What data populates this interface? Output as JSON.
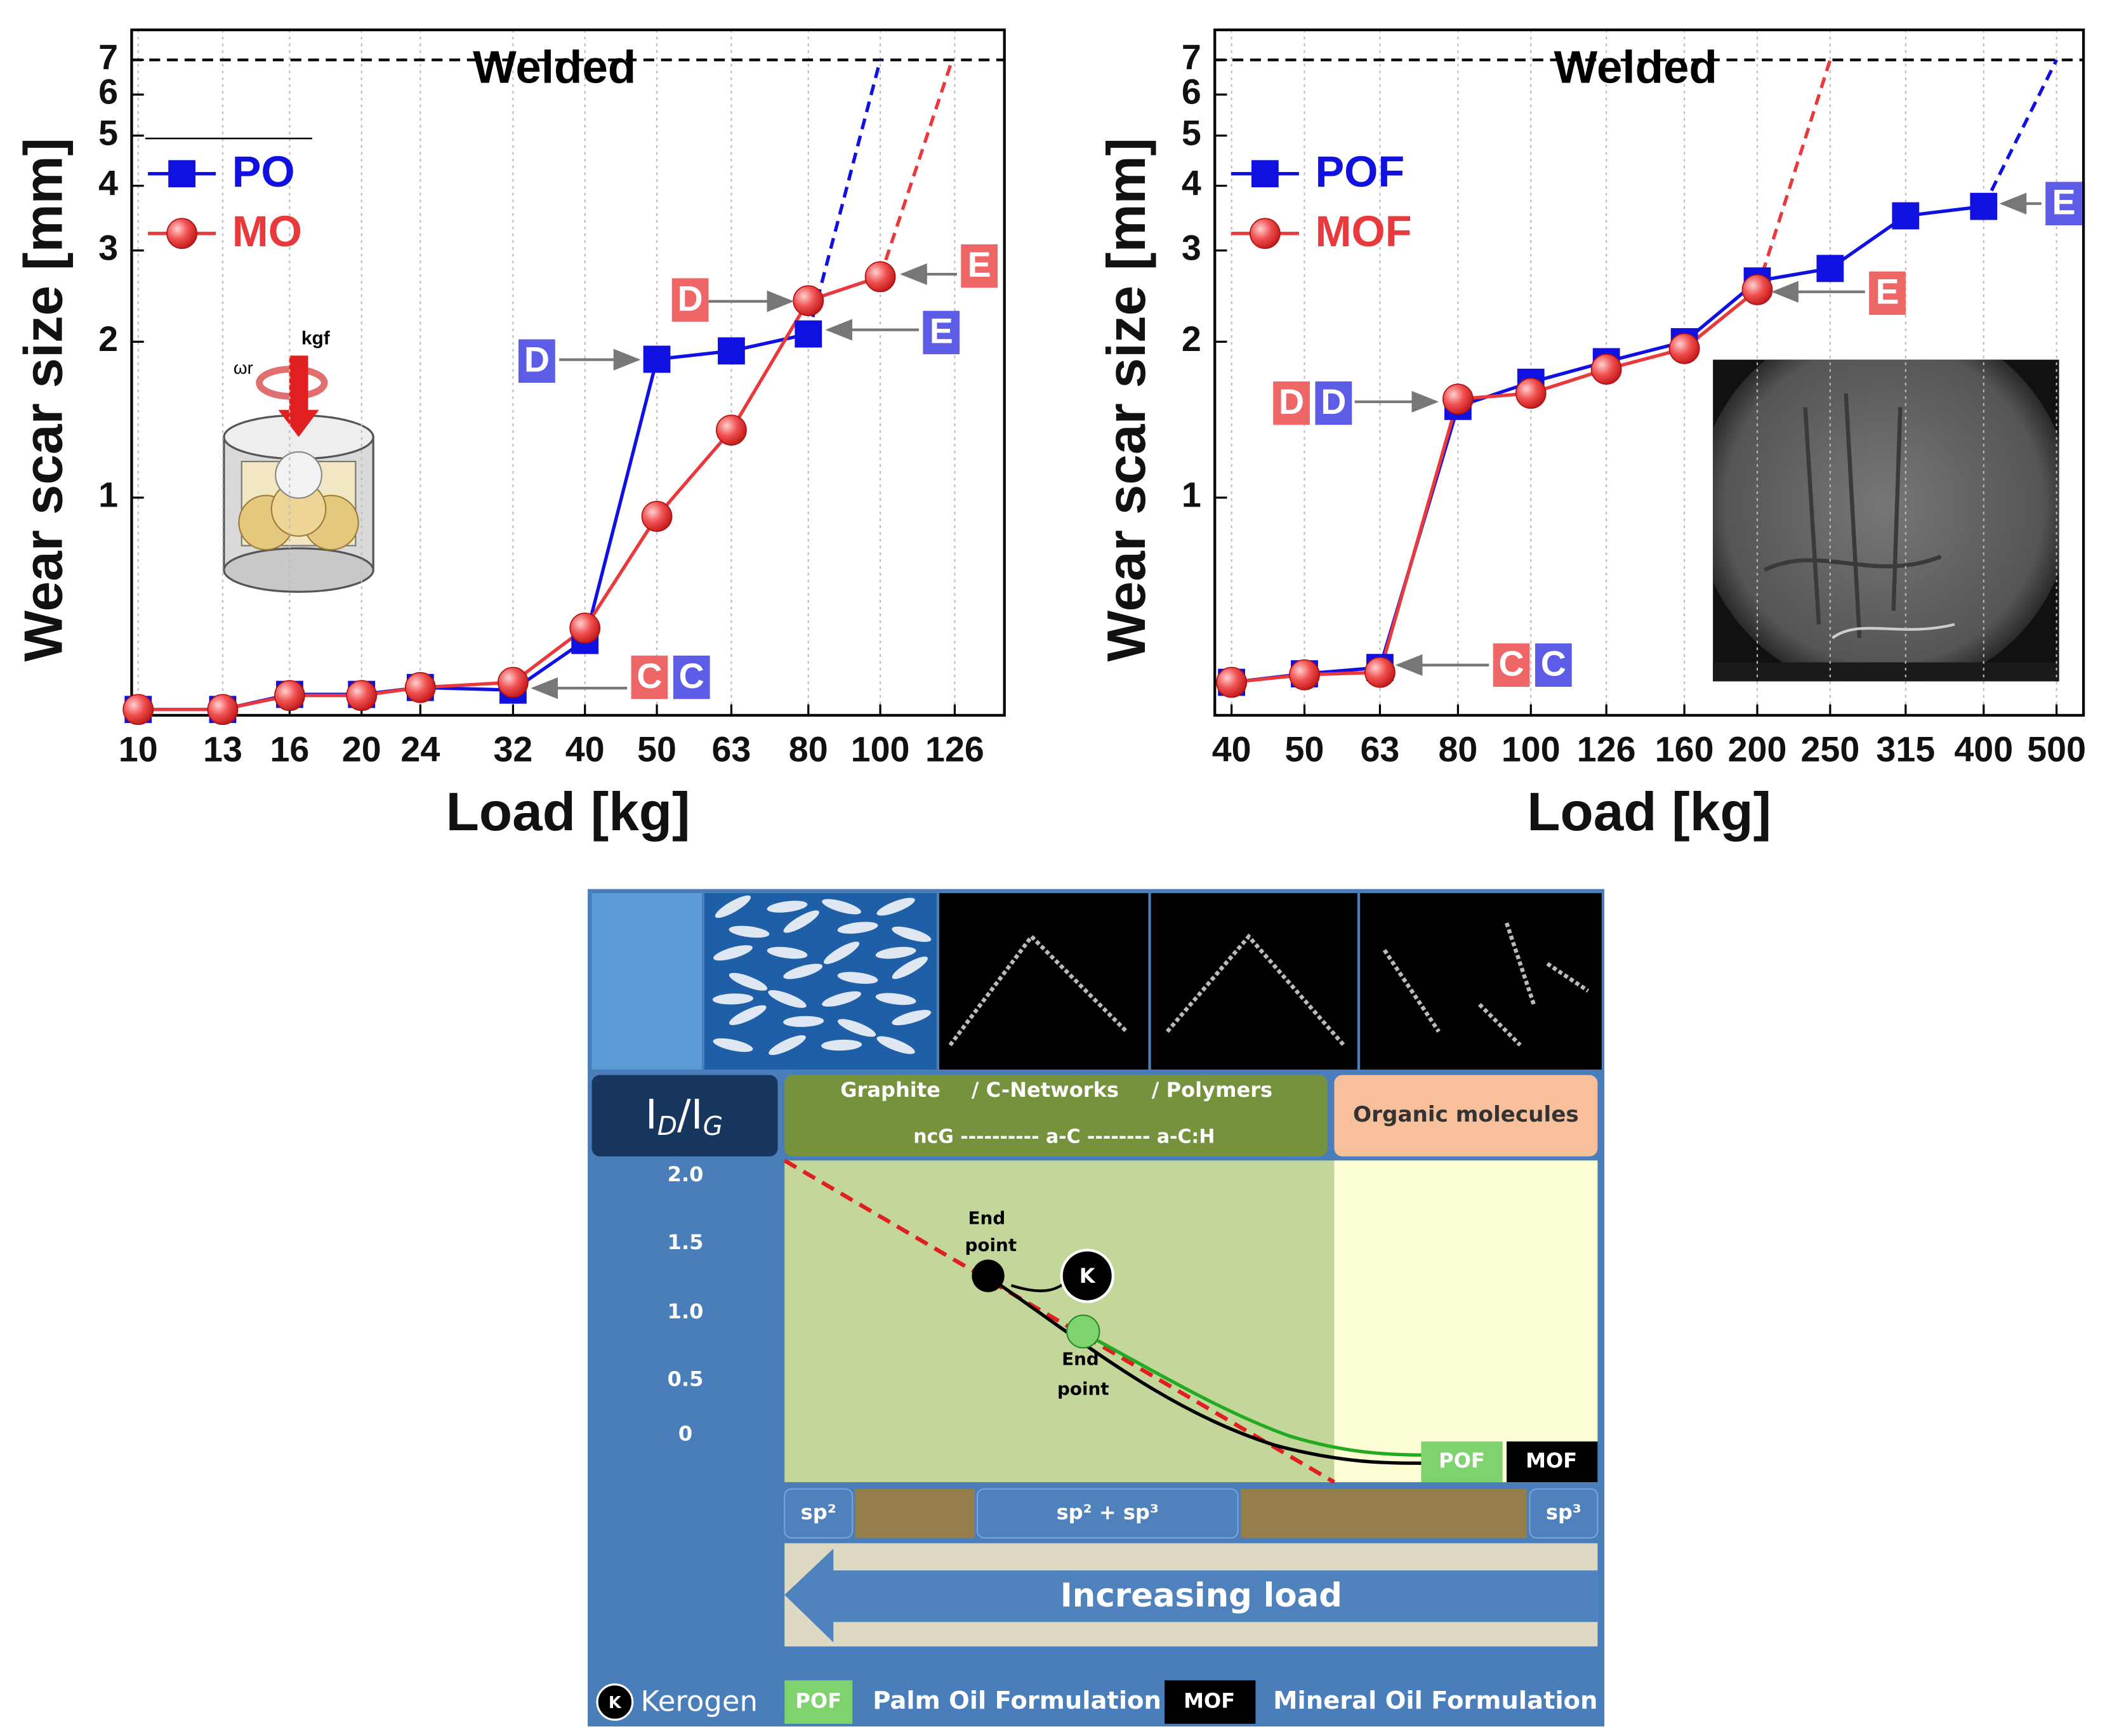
{
  "chart_data": [
    {
      "type": "line",
      "welded_label": "Welded",
      "x_label": "Load [kg]",
      "y_label": "Wear scar size [mm]",
      "xscale": "log",
      "yscale": "log",
      "xlim": [
        9.8,
        147
      ],
      "ylim": [
        0.38,
        8
      ],
      "xticks": [
        10,
        13,
        16,
        20,
        24,
        32,
        40,
        50,
        63,
        80,
        100,
        126
      ],
      "yticks": [
        1,
        2,
        3,
        4,
        5,
        6,
        7
      ],
      "grid": true,
      "welded_level": 7,
      "legend": "upper left",
      "series": [
        {
          "name": "PO",
          "color": "#1010e0",
          "marker": "square",
          "x": [
            10,
            13,
            16,
            20,
            24,
            32,
            40,
            50,
            63,
            80
          ],
          "values": [
            0.39,
            0.39,
            0.417,
            0.417,
            0.43,
            0.425,
            0.53,
            1.85,
            1.92,
            2.07
          ],
          "extrapolated": {
            "x": 100,
            "y": 7
          }
        },
        {
          "name": "MO",
          "color": "#e8393c",
          "marker": "circle",
          "x": [
            10,
            13,
            16,
            20,
            24,
            32,
            40,
            50,
            63,
            80,
            100
          ],
          "values": [
            0.39,
            0.39,
            0.415,
            0.415,
            0.43,
            0.44,
            0.56,
            0.92,
            1.35,
            2.4,
            2.67
          ],
          "extrapolated": {
            "x": 125,
            "y": 7
          }
        }
      ],
      "annotations": [
        {
          "text": "D",
          "color": "#ef6666"
        },
        {
          "text": "E",
          "color": "#ef6666"
        },
        {
          "text": "D",
          "color": "#5c5ce6"
        },
        {
          "text": "E",
          "color": "#5c5ce6"
        },
        {
          "text": "C",
          "color": "#ef6666"
        },
        {
          "text": "C",
          "color": "#5c5ce6"
        }
      ],
      "inset_labels": [
        "kgf",
        "ωr"
      ]
    },
    {
      "type": "line",
      "welded_label": "Welded",
      "x_label": "Load [kg]",
      "y_label": "Wear scar size [mm]",
      "xscale": "log",
      "yscale": "log",
      "xlim": [
        38,
        543
      ],
      "ylim": [
        0.38,
        8
      ],
      "xticks": [
        40,
        50,
        63,
        80,
        100,
        126,
        160,
        200,
        250,
        315,
        400,
        500
      ],
      "yticks": [
        1,
        2,
        3,
        4,
        5,
        6,
        7
      ],
      "grid": true,
      "welded_level": 7,
      "legend": "upper left",
      "series": [
        {
          "name": "POF",
          "color": "#1010e0",
          "marker": "square",
          "x": [
            40,
            50,
            63,
            80,
            100,
            126,
            160,
            200,
            250,
            315,
            400
          ],
          "values": [
            0.44,
            0.457,
            0.47,
            1.5,
            1.67,
            1.83,
            2.0,
            2.62,
            2.77,
            3.5,
            3.65
          ],
          "extrapolated": {
            "x": 500,
            "y": 7
          }
        },
        {
          "name": "MOF",
          "color": "#e8393c",
          "marker": "circle",
          "x": [
            40,
            50,
            63,
            80,
            100,
            126,
            160,
            200
          ],
          "values": [
            0.44,
            0.455,
            0.46,
            1.55,
            1.59,
            1.77,
            1.94,
            2.52
          ],
          "extrapolated": {
            "x": 250,
            "y": 7
          }
        }
      ],
      "annotations": [
        {
          "text": "D",
          "color": "#ef6666"
        },
        {
          "text": "D",
          "color": "#5c5ce6"
        },
        {
          "text": "E",
          "color": "#ef6666"
        },
        {
          "text": "E",
          "color": "#5c5ce6"
        },
        {
          "text": "C",
          "color": "#ef6666"
        },
        {
          "text": "C",
          "color": "#5c5ce6"
        }
      ]
    }
  ],
  "diagram": {
    "id_ig": [
      "I",
      "D",
      "/I",
      "G"
    ],
    "carbon_classes": [
      "Graphite",
      "/ C-Networks",
      "/ Polymers"
    ],
    "carbon_types": "ncG ---------- a-C -------- a-C:H",
    "organic": "Organic molecules",
    "y_labels": [
      "2.0",
      "1.5",
      "1.0",
      "0.5",
      "0"
    ],
    "end_point_black": [
      "End",
      "point"
    ],
    "end_point_green": [
      "End",
      "point"
    ],
    "kerogen_marker": "K",
    "pof": "POF",
    "mof": "MOF",
    "hybridization": [
      "sp²",
      "sp² + sp³",
      "sp³"
    ],
    "arrow_label": "Increasing load",
    "legend": [
      {
        "symbol": "K",
        "text": "Kerogen"
      },
      {
        "symbol": "POF",
        "text": "Palm Oil Formulation"
      },
      {
        "symbol": "MOF",
        "text": "Mineral Oil Formulation"
      }
    ]
  }
}
